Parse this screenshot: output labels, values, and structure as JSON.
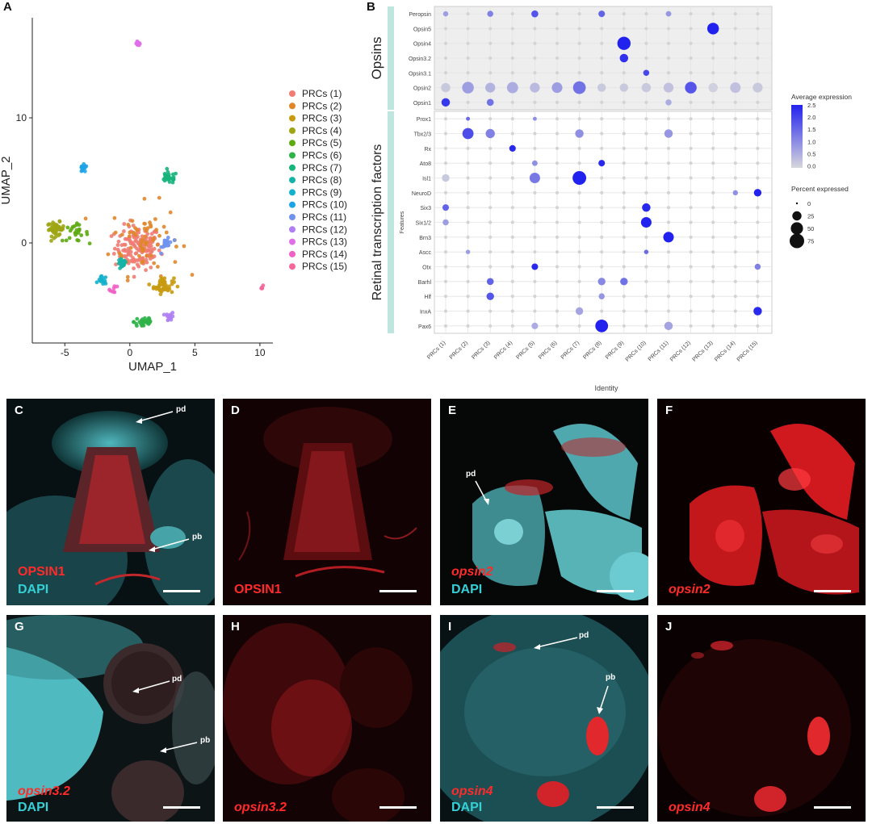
{
  "panels": {
    "A": "A",
    "B": "B",
    "C": "C",
    "D": "D",
    "E": "E",
    "F": "F",
    "G": "G",
    "H": "H",
    "I": "I",
    "J": "J"
  },
  "chart_data": [
    {
      "type": "scatter",
      "title": "",
      "xlabel": "UMAP_1",
      "ylabel": "UMAP_2",
      "xlim": [
        -7.5,
        11
      ],
      "ylim": [
        -8,
        18
      ],
      "x_ticks": [
        "-5",
        "0",
        "5",
        "10"
      ],
      "x_tick_values": [
        -5,
        0,
        5,
        10
      ],
      "y_ticks": [
        "0",
        "10"
      ],
      "y_tick_values": [
        0,
        10
      ],
      "legend": [
        "PRCs (1)",
        "PRCs (2)",
        "PRCs (3)",
        "PRCs (4)",
        "PRCs (5)",
        "PRCs (6)",
        "PRCs (7)",
        "PRCs (8)",
        "PRCs (9)",
        "PRCs (10)",
        "PRCs (11)",
        "PRCs (12)",
        "PRCs (13)",
        "PRCs (14)",
        "PRCs (15)"
      ],
      "colors": [
        "#f07c73",
        "#e0862a",
        "#c89a10",
        "#9da514",
        "#5eaa12",
        "#2fb249",
        "#17b47c",
        "#15b2a5",
        "#14b1cc",
        "#1ea4e6",
        "#6f92ef",
        "#af7ff2",
        "#e06ee8",
        "#f160c7",
        "#f3679a"
      ],
      "clusters": [
        {
          "name": "PRCs (1)",
          "center": [
            0.6,
            -0.4
          ],
          "spread": [
            1.6,
            1.6
          ],
          "n": 150
        },
        {
          "name": "PRCs (2)",
          "center": [
            1.2,
            0.3
          ],
          "spread": [
            2.4,
            2.6
          ],
          "n": 65
        },
        {
          "name": "PRCs (3)",
          "center": [
            2.6,
            -3.4
          ],
          "spread": [
            0.7,
            0.6
          ],
          "n": 45
        },
        {
          "name": "PRCs (4)",
          "center": [
            -5.7,
            1.1
          ],
          "spread": [
            0.6,
            0.5
          ],
          "n": 45
        },
        {
          "name": "PRCs (5)",
          "center": [
            -4.2,
            0.8
          ],
          "spread": [
            0.9,
            0.6
          ],
          "n": 25
        },
        {
          "name": "PRCs (6)",
          "center": [
            1.1,
            -6.3
          ],
          "spread": [
            0.7,
            0.5
          ],
          "n": 30
        },
        {
          "name": "PRCs (7)",
          "center": [
            3.0,
            5.2
          ],
          "spread": [
            0.6,
            0.4
          ],
          "n": 30
        },
        {
          "name": "PRCs (8)",
          "center": [
            -0.6,
            -1.7
          ],
          "spread": [
            0.3,
            0.4
          ],
          "n": 22
        },
        {
          "name": "PRCs (9)",
          "center": [
            -2.1,
            -3.0
          ],
          "spread": [
            0.3,
            0.3
          ],
          "n": 14
        },
        {
          "name": "PRCs (10)",
          "center": [
            -3.6,
            5.9
          ],
          "spread": [
            0.3,
            0.3
          ],
          "n": 16
        },
        {
          "name": "PRCs (11)",
          "center": [
            2.9,
            0.0
          ],
          "spread": [
            0.4,
            0.6
          ],
          "n": 18
        },
        {
          "name": "PRCs (12)",
          "center": [
            3.1,
            -5.9
          ],
          "spread": [
            0.3,
            0.3
          ],
          "n": 12
        },
        {
          "name": "PRCs (13)",
          "center": [
            0.6,
            16.0
          ],
          "spread": [
            0.2,
            0.2
          ],
          "n": 10
        },
        {
          "name": "PRCs (14)",
          "center": [
            -1.2,
            -3.7
          ],
          "spread": [
            0.3,
            0.3
          ],
          "n": 8
        },
        {
          "name": "PRCs (15)",
          "center": [
            10.2,
            -3.6
          ],
          "spread": [
            0.15,
            0.15
          ],
          "n": 5
        }
      ]
    },
    {
      "type": "dotplot",
      "xlabel": "Identity",
      "ylabel": "Features",
      "groups": [
        "PRCs (1)",
        "PRCs (2)",
        "PRCs (3)",
        "PRCs (4)",
        "PRCs (5)",
        "PRCs (6)",
        "PRCs (7)",
        "PRCs (8)",
        "PRCs (9)",
        "PRCs (10)",
        "PRCs (11)",
        "PRCs (12)",
        "PRCs (13)",
        "PRCs (14)",
        "PRCs (15)"
      ],
      "facets": [
        {
          "label": "Opsins",
          "features": [
            "Peropsin",
            "Opsin5",
            "Opsin4",
            "Opsin3.2",
            "Opsin3.1",
            "Opsin2",
            "Opsin1"
          ]
        },
        {
          "label": "Retinal transcription factors",
          "features": [
            "Prox1",
            "Tbx2/3",
            "Rx",
            "Ato8",
            "Isl1",
            "NeuroD",
            "Six3",
            "Six1/2",
            "Brn3",
            "Ascc",
            "Otx",
            "Barhl",
            "Hlf",
            "InxA",
            "Pax6"
          ]
        }
      ],
      "avg_expression_scale": {
        "title": "Average expression",
        "min": 0,
        "max": 2.5,
        "ticks": [
          "2.5",
          "2.0",
          "1.5",
          "1.0",
          "0.5",
          "0.0"
        ],
        "low_color": "#d7d7dd",
        "high_color": "#2222ee"
      },
      "percent_scale": {
        "title": "Percent expressed",
        "ticks": [
          "0",
          "25",
          "50",
          "75"
        ]
      },
      "points": [
        [
          "Peropsin",
          [
            [
              1,
              0.8,
              5
            ],
            [
              3,
              1.2,
              8
            ],
            [
              5,
              1.8,
              12
            ],
            [
              8,
              1.6,
              10
            ],
            [
              11,
              0.9,
              6
            ]
          ]
        ],
        [
          "Opsin5",
          [
            [
              13,
              2.5,
              45
            ]
          ]
        ],
        [
          "Opsin4",
          [
            [
              9,
              2.5,
              60
            ]
          ]
        ],
        [
          "Opsin3.2",
          [
            [
              9,
              2.3,
              20
            ]
          ]
        ],
        [
          "Opsin3.1",
          [
            [
              10,
              2.0,
              8
            ]
          ]
        ],
        [
          "Opsin2",
          [
            [
              1,
              0.2,
              25
            ],
            [
              2,
              0.8,
              45
            ],
            [
              3,
              0.5,
              30
            ],
            [
              4,
              0.6,
              40
            ],
            [
              5,
              0.4,
              30
            ],
            [
              6,
              0.8,
              35
            ],
            [
              7,
              1.4,
              55
            ],
            [
              8,
              0.2,
              20
            ],
            [
              9,
              0.2,
              20
            ],
            [
              10,
              0.2,
              25
            ],
            [
              11,
              0.3,
              30
            ],
            [
              12,
              1.8,
              45
            ],
            [
              13,
              0.1,
              25
            ],
            [
              14,
              0.3,
              35
            ],
            [
              15,
              0.2,
              30
            ]
          ]
        ],
        [
          "Opsin1",
          [
            [
              1,
              2.2,
              20
            ],
            [
              3,
              1.4,
              12
            ],
            [
              11,
              0.6,
              8
            ]
          ]
        ],
        [
          "Prox1",
          [
            [
              2,
              1.5,
              2
            ],
            [
              5,
              1.0,
              2
            ]
          ]
        ],
        [
          "Tbx2/3",
          [
            [
              2,
              1.9,
              40
            ],
            [
              3,
              1.2,
              25
            ],
            [
              7,
              1.0,
              20
            ],
            [
              11,
              0.9,
              20
            ]
          ]
        ],
        [
          "Rx",
          [
            [
              4,
              2.4,
              10
            ]
          ]
        ],
        [
          "Ato8",
          [
            [
              5,
              1.0,
              6
            ],
            [
              8,
              2.4,
              10
            ]
          ]
        ],
        [
          "Isl1",
          [
            [
              1,
              0.2,
              15
            ],
            [
              5,
              1.3,
              35
            ],
            [
              7,
              2.5,
              65
            ]
          ]
        ],
        [
          "NeuroD",
          [
            [
              15,
              2.5,
              15
            ],
            [
              14,
              1.0,
              5
            ]
          ]
        ],
        [
          "Six3",
          [
            [
              1,
              1.6,
              10
            ],
            [
              10,
              2.4,
              20
            ]
          ]
        ],
        [
          "Six1/2",
          [
            [
              1,
              0.8,
              8
            ],
            [
              10,
              2.5,
              35
            ]
          ]
        ],
        [
          "Brn3",
          [
            [
              11,
              2.5,
              35
            ]
          ]
        ],
        [
          "Ascc",
          [
            [
              2,
              0.8,
              3
            ],
            [
              10,
              1.5,
              3
            ]
          ]
        ],
        [
          "Otx",
          [
            [
              5,
              2.4,
              10
            ],
            [
              15,
              1.2,
              8
            ]
          ]
        ],
        [
          "Barhl",
          [
            [
              3,
              1.6,
              12
            ],
            [
              8,
              1.1,
              15
            ],
            [
              9,
              1.4,
              15
            ]
          ]
        ],
        [
          "Hlf",
          [
            [
              3,
              1.8,
              15
            ],
            [
              8,
              0.9,
              8
            ]
          ]
        ],
        [
          "InxA",
          [
            [
              7,
              0.7,
              15
            ],
            [
              15,
              2.4,
              20
            ]
          ]
        ],
        [
          "Pax6",
          [
            [
              5,
              0.6,
              10
            ],
            [
              8,
              2.5,
              55
            ],
            [
              11,
              0.7,
              20
            ]
          ]
        ]
      ]
    }
  ],
  "images": {
    "C": {
      "letter": "C",
      "label1": "OPSIN1",
      "label2": "DAPI",
      "arrow1": "pd",
      "arrow2": "pb"
    },
    "D": {
      "letter": "D",
      "label1": "OPSIN1"
    },
    "E": {
      "letter": "E",
      "label1": "opsin2",
      "label2": "DAPI",
      "arrow1": "pd"
    },
    "F": {
      "letter": "F",
      "label1": "opsin2"
    },
    "G": {
      "letter": "G",
      "label1": "opsin3.2",
      "label2": "DAPI",
      "arrow1": "pd",
      "arrow2": "pb"
    },
    "H": {
      "letter": "H",
      "label1": "opsin3.2"
    },
    "I": {
      "letter": "I",
      "label1": "opsin4",
      "label2": "DAPI",
      "arrow1": "pd",
      "arrow2": "pb"
    },
    "J": {
      "letter": "J",
      "label1": "opsin4"
    }
  }
}
